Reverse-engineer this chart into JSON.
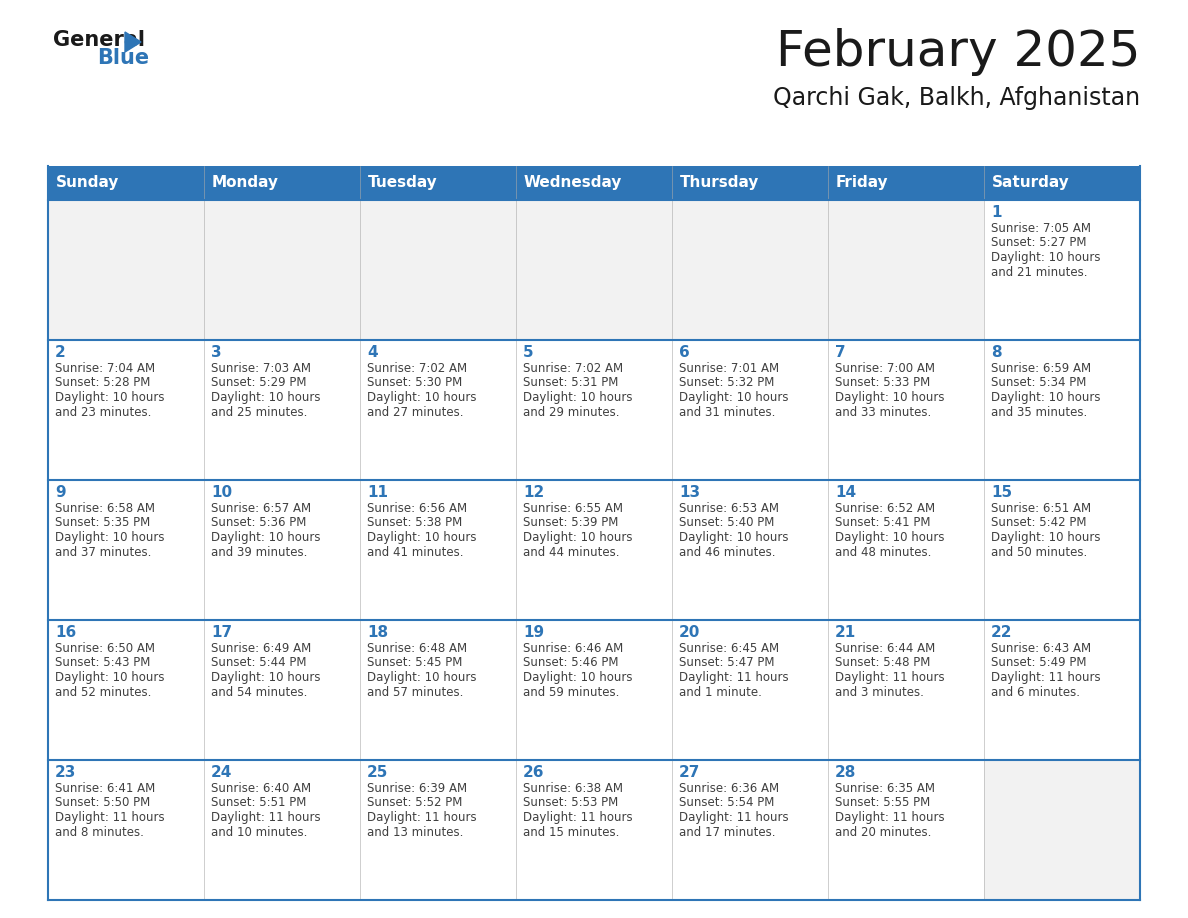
{
  "title": "February 2025",
  "subtitle": "Qarchi Gak, Balkh, Afghanistan",
  "days_of_week": [
    "Sunday",
    "Monday",
    "Tuesday",
    "Wednesday",
    "Thursday",
    "Friday",
    "Saturday"
  ],
  "header_bg": "#2E75B6",
  "header_text": "#FFFFFF",
  "cell_bg_white": "#FFFFFF",
  "cell_bg_gray": "#F2F2F2",
  "border_color": "#2E75B6",
  "day_num_color": "#2E75B6",
  "text_color": "#404040",
  "logo_black": "#1a1a1a",
  "logo_blue": "#2E75B6",
  "calendar": [
    [
      null,
      null,
      null,
      null,
      null,
      null,
      {
        "day": 1,
        "sunrise": "7:05 AM",
        "sunset": "5:27 PM",
        "daylight": "10 hours",
        "daylight2": "and 21 minutes."
      }
    ],
    [
      {
        "day": 2,
        "sunrise": "7:04 AM",
        "sunset": "5:28 PM",
        "daylight": "10 hours",
        "daylight2": "and 23 minutes."
      },
      {
        "day": 3,
        "sunrise": "7:03 AM",
        "sunset": "5:29 PM",
        "daylight": "10 hours",
        "daylight2": "and 25 minutes."
      },
      {
        "day": 4,
        "sunrise": "7:02 AM",
        "sunset": "5:30 PM",
        "daylight": "10 hours",
        "daylight2": "and 27 minutes."
      },
      {
        "day": 5,
        "sunrise": "7:02 AM",
        "sunset": "5:31 PM",
        "daylight": "10 hours",
        "daylight2": "and 29 minutes."
      },
      {
        "day": 6,
        "sunrise": "7:01 AM",
        "sunset": "5:32 PM",
        "daylight": "10 hours",
        "daylight2": "and 31 minutes."
      },
      {
        "day": 7,
        "sunrise": "7:00 AM",
        "sunset": "5:33 PM",
        "daylight": "10 hours",
        "daylight2": "and 33 minutes."
      },
      {
        "day": 8,
        "sunrise": "6:59 AM",
        "sunset": "5:34 PM",
        "daylight": "10 hours",
        "daylight2": "and 35 minutes."
      }
    ],
    [
      {
        "day": 9,
        "sunrise": "6:58 AM",
        "sunset": "5:35 PM",
        "daylight": "10 hours",
        "daylight2": "and 37 minutes."
      },
      {
        "day": 10,
        "sunrise": "6:57 AM",
        "sunset": "5:36 PM",
        "daylight": "10 hours",
        "daylight2": "and 39 minutes."
      },
      {
        "day": 11,
        "sunrise": "6:56 AM",
        "sunset": "5:38 PM",
        "daylight": "10 hours",
        "daylight2": "and 41 minutes."
      },
      {
        "day": 12,
        "sunrise": "6:55 AM",
        "sunset": "5:39 PM",
        "daylight": "10 hours",
        "daylight2": "and 44 minutes."
      },
      {
        "day": 13,
        "sunrise": "6:53 AM",
        "sunset": "5:40 PM",
        "daylight": "10 hours",
        "daylight2": "and 46 minutes."
      },
      {
        "day": 14,
        "sunrise": "6:52 AM",
        "sunset": "5:41 PM",
        "daylight": "10 hours",
        "daylight2": "and 48 minutes."
      },
      {
        "day": 15,
        "sunrise": "6:51 AM",
        "sunset": "5:42 PM",
        "daylight": "10 hours",
        "daylight2": "and 50 minutes."
      }
    ],
    [
      {
        "day": 16,
        "sunrise": "6:50 AM",
        "sunset": "5:43 PM",
        "daylight": "10 hours",
        "daylight2": "and 52 minutes."
      },
      {
        "day": 17,
        "sunrise": "6:49 AM",
        "sunset": "5:44 PM",
        "daylight": "10 hours",
        "daylight2": "and 54 minutes."
      },
      {
        "day": 18,
        "sunrise": "6:48 AM",
        "sunset": "5:45 PM",
        "daylight": "10 hours",
        "daylight2": "and 57 minutes."
      },
      {
        "day": 19,
        "sunrise": "6:46 AM",
        "sunset": "5:46 PM",
        "daylight": "10 hours",
        "daylight2": "and 59 minutes."
      },
      {
        "day": 20,
        "sunrise": "6:45 AM",
        "sunset": "5:47 PM",
        "daylight": "11 hours",
        "daylight2": "and 1 minute."
      },
      {
        "day": 21,
        "sunrise": "6:44 AM",
        "sunset": "5:48 PM",
        "daylight": "11 hours",
        "daylight2": "and 3 minutes."
      },
      {
        "day": 22,
        "sunrise": "6:43 AM",
        "sunset": "5:49 PM",
        "daylight": "11 hours",
        "daylight2": "and 6 minutes."
      }
    ],
    [
      {
        "day": 23,
        "sunrise": "6:41 AM",
        "sunset": "5:50 PM",
        "daylight": "11 hours",
        "daylight2": "and 8 minutes."
      },
      {
        "day": 24,
        "sunrise": "6:40 AM",
        "sunset": "5:51 PM",
        "daylight": "11 hours",
        "daylight2": "and 10 minutes."
      },
      {
        "day": 25,
        "sunrise": "6:39 AM",
        "sunset": "5:52 PM",
        "daylight": "11 hours",
        "daylight2": "and 13 minutes."
      },
      {
        "day": 26,
        "sunrise": "6:38 AM",
        "sunset": "5:53 PM",
        "daylight": "11 hours",
        "daylight2": "and 15 minutes."
      },
      {
        "day": 27,
        "sunrise": "6:36 AM",
        "sunset": "5:54 PM",
        "daylight": "11 hours",
        "daylight2": "and 17 minutes."
      },
      {
        "day": 28,
        "sunrise": "6:35 AM",
        "sunset": "5:55 PM",
        "daylight": "11 hours",
        "daylight2": "and 20 minutes."
      },
      null
    ]
  ]
}
